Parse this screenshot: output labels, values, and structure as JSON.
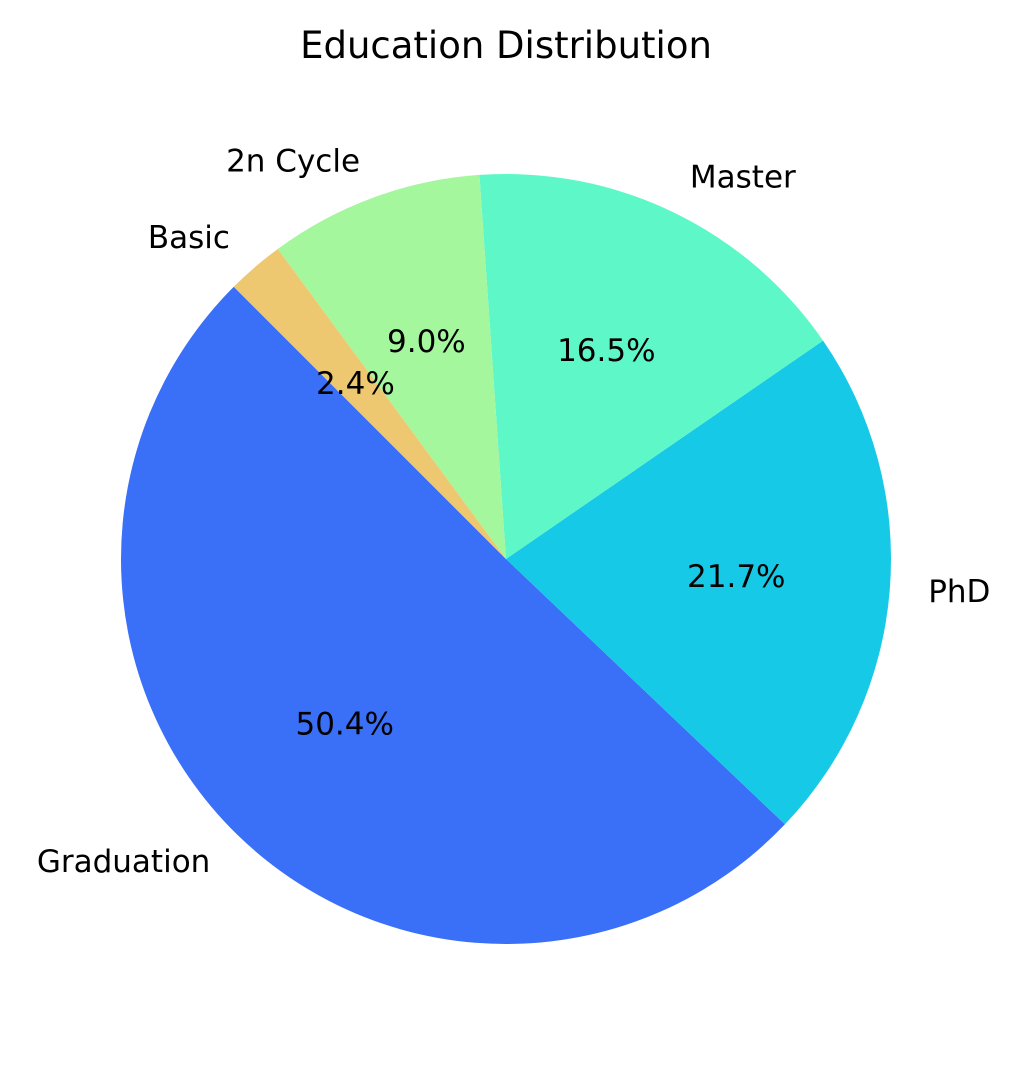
{
  "chart_data": {
    "type": "pie",
    "title": "Education Distribution",
    "start_angle_deg": 135,
    "direction": "counterclockwise",
    "slices": [
      {
        "label": "Graduation",
        "value": 50.4,
        "pct_label": "50.4%",
        "color": "#3a70f8"
      },
      {
        "label": "PhD",
        "value": 21.7,
        "pct_label": "21.7%",
        "color": "#16c9e6"
      },
      {
        "label": "Master",
        "value": 16.5,
        "pct_label": "16.5%",
        "color": "#5ef7c7"
      },
      {
        "label": "2n Cycle",
        "value": 9.0,
        "pct_label": "9.0%",
        "color": "#a4f79d"
      },
      {
        "label": "Basic",
        "value": 2.4,
        "pct_label": "2.4%",
        "color": "#eec870"
      }
    ]
  }
}
